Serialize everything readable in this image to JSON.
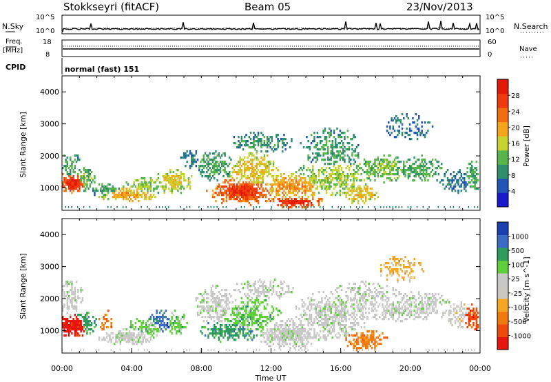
{
  "header": {
    "station": "Stokkseyri (fitACF)",
    "beam": "Beam 05",
    "date": "23/Nov/2013"
  },
  "noise_panel": {
    "left_label": "N.Sky",
    "left_ticks": [
      "10^5",
      "10^0"
    ],
    "right_ticks": [
      "10^5",
      "10^0"
    ],
    "right_label": "N.Search"
  },
  "freq_panel": {
    "left_label_1": "Freq.",
    "left_label_2": "[MHz]",
    "left_ticks": [
      "18",
      "8"
    ],
    "right_ticks": [
      "60",
      "0"
    ],
    "right_label": "Nave"
  },
  "cpid": {
    "label": "CPID",
    "value": "normal (fast) 151"
  },
  "colors": {
    "power_scale": [
      "#1a1acc",
      "#1f56b8",
      "#2f8f6d",
      "#57b54a",
      "#c7d22e",
      "#f5a51c",
      "#f06d10",
      "#ee3a0c",
      "#e11a0a"
    ],
    "velocity_scale": [
      "#e8140e",
      "#ef4a0c",
      "#f07a0e",
      "#f5a623",
      "#c9c8c2",
      "#c8c8c8",
      "#5fcf3a",
      "#2e9a5c",
      "#3a6cc6",
      "#1a3fb0"
    ]
  },
  "chart_data": [
    {
      "type": "heatmap",
      "name": "power",
      "ylabel": "Slant Range [km]",
      "y_ticks": [
        "1000",
        "2000",
        "3000",
        "4000"
      ],
      "ylim": [
        300,
        4500
      ],
      "colorbar_label": "Power [dB]",
      "colorbar_ticks": [
        "4",
        "8",
        "12",
        "16",
        "20",
        "24",
        "28"
      ],
      "clim": [
        0,
        30
      ],
      "blobs": [
        {
          "t": 0.6,
          "r": 1150,
          "dt": 0.8,
          "dr": 250,
          "v": 27,
          "d": 0.95
        },
        {
          "t": 0.5,
          "r": 1700,
          "dt": 0.6,
          "dr": 300,
          "v": 10,
          "d": 0.6
        },
        {
          "t": 1.3,
          "r": 1250,
          "dt": 0.5,
          "dr": 300,
          "v": 12,
          "d": 0.7
        },
        {
          "t": 2.6,
          "r": 950,
          "dt": 0.8,
          "dr": 200,
          "v": 10,
          "d": 0.6
        },
        {
          "t": 3.8,
          "r": 800,
          "dt": 1.3,
          "dr": 180,
          "v": 19,
          "d": 0.8
        },
        {
          "t": 4.8,
          "r": 1050,
          "dt": 1.0,
          "dr": 200,
          "v": 14,
          "d": 0.7
        },
        {
          "t": 6.4,
          "r": 1200,
          "dt": 0.9,
          "dr": 300,
          "v": 17,
          "d": 0.7
        },
        {
          "t": 7.5,
          "r": 1900,
          "dt": 0.6,
          "dr": 250,
          "v": 8,
          "d": 0.5
        },
        {
          "t": 8.9,
          "r": 1700,
          "dt": 1.0,
          "dr": 400,
          "v": 10,
          "d": 0.55
        },
        {
          "t": 10.4,
          "r": 900,
          "dt": 1.5,
          "dr": 320,
          "v": 26,
          "d": 0.9
        },
        {
          "t": 11.0,
          "r": 1500,
          "dt": 1.2,
          "dr": 500,
          "v": 18,
          "d": 0.65
        },
        {
          "t": 11.5,
          "r": 2400,
          "dt": 1.6,
          "dr": 300,
          "v": 9,
          "d": 0.5
        },
        {
          "t": 13.5,
          "r": 560,
          "dt": 1.2,
          "dr": 130,
          "v": 28,
          "d": 0.95
        },
        {
          "t": 13.2,
          "r": 1050,
          "dt": 1.6,
          "dr": 300,
          "v": 21,
          "d": 0.75
        },
        {
          "t": 15.5,
          "r": 1300,
          "dt": 1.8,
          "dr": 450,
          "v": 15,
          "d": 0.6
        },
        {
          "t": 15.5,
          "r": 2200,
          "dt": 1.6,
          "dr": 600,
          "v": 10,
          "d": 0.45
        },
        {
          "t": 17.2,
          "r": 800,
          "dt": 0.8,
          "dr": 250,
          "v": 18,
          "d": 0.7
        },
        {
          "t": 18.4,
          "r": 1600,
          "dt": 1.4,
          "dr": 350,
          "v": 13,
          "d": 0.6
        },
        {
          "t": 20.5,
          "r": 1600,
          "dt": 1.2,
          "dr": 350,
          "v": 11,
          "d": 0.55
        },
        {
          "t": 20.0,
          "r": 2900,
          "dt": 1.6,
          "dr": 500,
          "v": 6,
          "d": 0.25
        },
        {
          "t": 22.7,
          "r": 1200,
          "dt": 1.0,
          "dr": 350,
          "v": 7,
          "d": 0.45
        },
        {
          "t": 23.7,
          "r": 1400,
          "dt": 0.4,
          "dr": 400,
          "v": 10,
          "d": 0.6
        }
      ]
    },
    {
      "type": "heatmap",
      "name": "velocity",
      "ylabel": "Slant Range [km]",
      "y_ticks": [
        "1000",
        "2000",
        "3000",
        "4000"
      ],
      "ylim": [
        300,
        4500
      ],
      "colorbar_label": "Velocity [m s^-1]",
      "colorbar_ticks": [
        "-1000",
        "-500",
        "-100",
        "-25",
        "25",
        "100",
        "500",
        "1000"
      ],
      "xlabel": "Time UT",
      "x_ticks": [
        "00:00",
        "04:00",
        "08:00",
        "12:00",
        "16:00",
        "20:00",
        "00:00"
      ],
      "xlim": [
        0,
        24
      ],
      "blobs": [
        {
          "t": 0.6,
          "r": 1150,
          "dt": 0.8,
          "dr": 250,
          "c": 0,
          "d": 0.9
        },
        {
          "t": 0.5,
          "r": 2100,
          "dt": 0.6,
          "dr": 500,
          "c": 5,
          "d": 0.6
        },
        {
          "t": 1.4,
          "r": 1250,
          "dt": 0.5,
          "dr": 300,
          "c": 7,
          "d": 0.6
        },
        {
          "t": 2.5,
          "r": 1300,
          "dt": 0.4,
          "dr": 300,
          "c": 2,
          "d": 0.5
        },
        {
          "t": 3.8,
          "r": 800,
          "dt": 1.3,
          "dr": 180,
          "c": 5,
          "d": 0.8
        },
        {
          "t": 4.8,
          "r": 1100,
          "dt": 1.0,
          "dr": 250,
          "c": 6,
          "d": 0.6
        },
        {
          "t": 5.7,
          "r": 1300,
          "dt": 0.6,
          "dr": 300,
          "c": 8,
          "d": 0.6
        },
        {
          "t": 6.6,
          "r": 1250,
          "dt": 0.5,
          "dr": 300,
          "c": 6,
          "d": 0.6
        },
        {
          "t": 8.9,
          "r": 1800,
          "dt": 1.0,
          "dr": 500,
          "c": 5,
          "d": 0.6
        },
        {
          "t": 9.8,
          "r": 1000,
          "dt": 1.5,
          "dr": 300,
          "c": 7,
          "d": 0.6
        },
        {
          "t": 10.8,
          "r": 1400,
          "dt": 1.5,
          "dr": 500,
          "c": 6,
          "d": 0.6
        },
        {
          "t": 11.6,
          "r": 2300,
          "dt": 1.6,
          "dr": 300,
          "c": 5,
          "d": 0.45
        },
        {
          "t": 13.2,
          "r": 900,
          "dt": 1.6,
          "dr": 350,
          "c": 5,
          "d": 0.8
        },
        {
          "t": 15.5,
          "r": 1500,
          "dt": 1.8,
          "dr": 600,
          "c": 5,
          "d": 0.6
        },
        {
          "t": 17.5,
          "r": 2000,
          "dt": 1.8,
          "dr": 500,
          "c": 5,
          "d": 0.45
        },
        {
          "t": 17.5,
          "r": 700,
          "dt": 1.0,
          "dr": 250,
          "c": 2,
          "d": 0.75
        },
        {
          "t": 19.2,
          "r": 1650,
          "dt": 1.2,
          "dr": 350,
          "c": 5,
          "d": 0.55
        },
        {
          "t": 20.8,
          "r": 1800,
          "dt": 1.3,
          "dr": 400,
          "c": 5,
          "d": 0.5
        },
        {
          "t": 19.5,
          "r": 2900,
          "dt": 1.6,
          "dr": 500,
          "c": 3,
          "d": 0.25
        },
        {
          "t": 23.6,
          "r": 1400,
          "dt": 0.4,
          "dr": 350,
          "c": 1,
          "d": 0.7
        },
        {
          "t": 22.8,
          "r": 1500,
          "dt": 1.0,
          "dr": 400,
          "c": 4,
          "d": 0.35
        }
      ]
    }
  ]
}
